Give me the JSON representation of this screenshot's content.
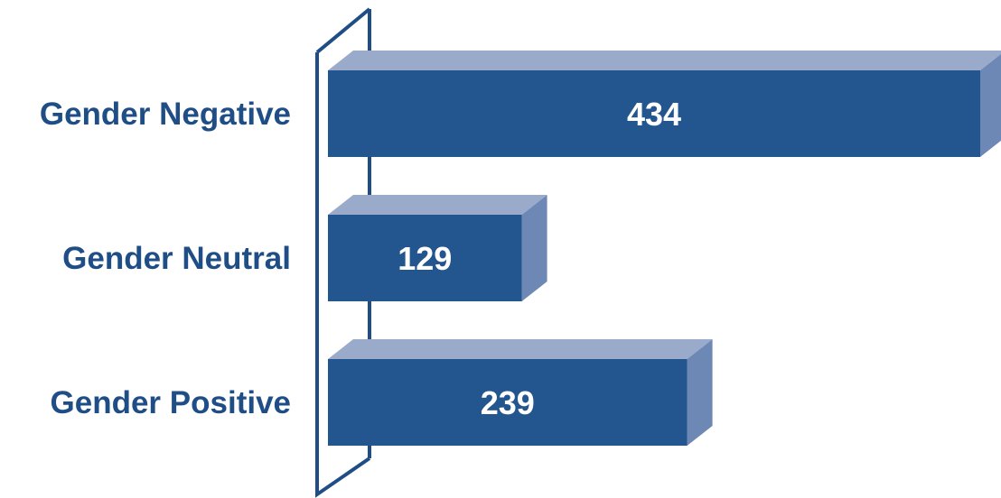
{
  "chart_data": {
    "type": "bar",
    "orientation": "horizontal",
    "style": "3d",
    "categories": [
      "Gender Negative",
      "Gender Neutral",
      "Gender Positive"
    ],
    "values": [
      434,
      129,
      239
    ],
    "title": "",
    "xlabel": "",
    "ylabel": "",
    "xlim": [
      0,
      434
    ],
    "grid": false,
    "legend": "none",
    "colors": {
      "bar_front": "#23558e",
      "bar_top": "#9aaacb",
      "bar_side": "#6e88b6",
      "axis_frame": "#1f4e86",
      "category_text": "#1f4e86",
      "value_text": "#ffffff"
    }
  }
}
